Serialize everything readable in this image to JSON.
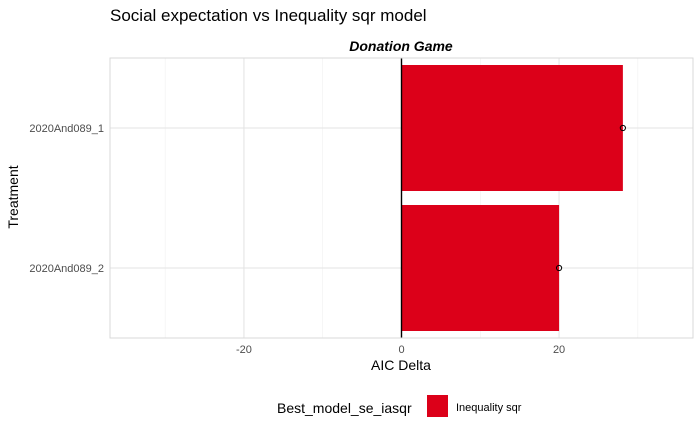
{
  "chart_data": {
    "type": "bar",
    "orientation": "horizontal",
    "title": "Social expectation vs Inequality sqr model",
    "facet_label": "Donation Game",
    "xlabel": "AIC Delta",
    "ylabel": "Treatment",
    "xlim": [
      -37,
      37
    ],
    "x_ticks": [
      -20,
      0,
      20
    ],
    "categories": [
      "2020And089_1",
      "2020And089_2"
    ],
    "series": [
      {
        "name": "Inequality sqr",
        "color": "#dc0019",
        "values": [
          28.1,
          20
        ]
      }
    ],
    "points": [
      28.1,
      20
    ],
    "reference_line_x": 0,
    "grid": true,
    "legend": {
      "title": "Best_model_se_iasqr",
      "position": "bottom",
      "entries": [
        {
          "label": "Inequality sqr",
          "color": "#dc0019"
        }
      ]
    }
  }
}
